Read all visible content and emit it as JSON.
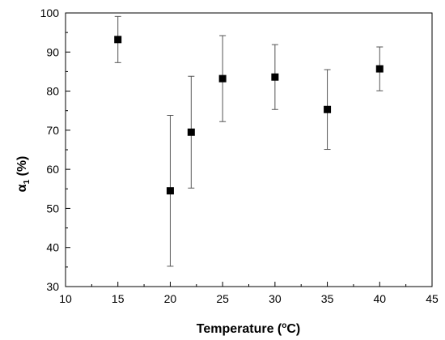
{
  "chart_data": {
    "type": "scatter",
    "title": "",
    "xlabel": "Temperature (°C)",
    "ylabel": "α1 (%)",
    "xlim": [
      10,
      45
    ],
    "ylim": [
      30,
      100
    ],
    "xticks": [
      10,
      15,
      20,
      25,
      30,
      35,
      40,
      45
    ],
    "yticks": [
      30,
      40,
      50,
      60,
      70,
      80,
      90,
      100
    ],
    "x_tick_labels": [
      "10",
      "15",
      "20",
      "25",
      "30",
      "35",
      "40",
      "45"
    ],
    "y_tick_labels": [
      "30",
      "40",
      "50",
      "60",
      "70",
      "80",
      "90",
      "100"
    ],
    "grid": false,
    "legend": false,
    "marker": "square",
    "marker_color": "#000000",
    "errorbar_color": "#555555",
    "series": [
      {
        "x": [
          15,
          20,
          22,
          25,
          30,
          35,
          40
        ],
        "y": [
          93.2,
          54.5,
          69.5,
          83.2,
          83.6,
          75.3,
          85.7
        ],
        "yerr_low": [
          87.3,
          35.2,
          55.2,
          72.2,
          75.3,
          65.1,
          80.1
        ],
        "yerr_high": [
          99.1,
          73.8,
          83.8,
          94.2,
          91.9,
          85.5,
          91.3
        ]
      }
    ]
  }
}
